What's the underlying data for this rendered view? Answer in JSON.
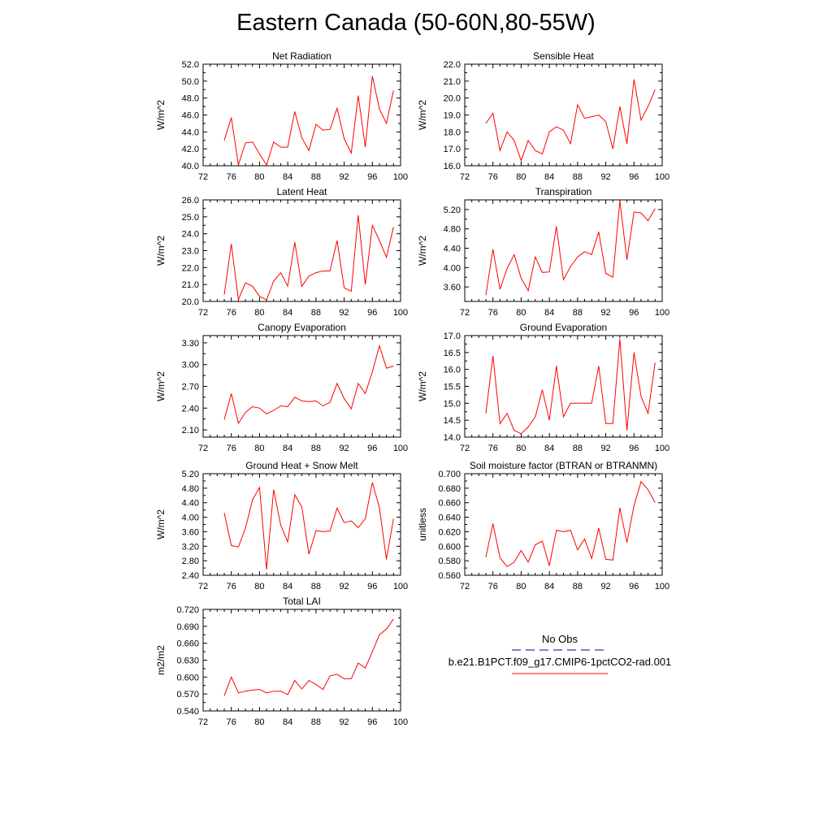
{
  "title": "Eastern Canada (50-60N,80-55W)",
  "colors": {
    "model": "#ff0000",
    "obs": "#00008b",
    "axis": "#000000"
  },
  "chart_data": [
    {
      "type": "line",
      "title": "Net Radiation",
      "ylabel": "W/m^2",
      "xlim": [
        72,
        100
      ],
      "ylim": [
        40.0,
        52.0
      ],
      "xticks": [
        "72",
        "76",
        "80",
        "84",
        "88",
        "92",
        "96",
        "100"
      ],
      "yticks": [
        "40.0",
        "42.0",
        "44.0",
        "46.0",
        "48.0",
        "50.0",
        "52.0"
      ],
      "x": [
        75,
        76,
        77,
        78,
        79,
        80,
        81,
        82,
        83,
        84,
        85,
        86,
        87,
        88,
        89,
        90,
        91,
        92,
        93,
        94,
        95,
        96,
        97,
        98,
        99
      ],
      "series": [
        {
          "values": [
            43.0,
            45.7,
            40.1,
            42.7,
            42.8,
            41.4,
            40.1,
            42.8,
            42.2,
            42.2,
            46.4,
            43.3,
            41.8,
            44.9,
            44.2,
            44.3,
            46.8,
            43.2,
            41.5,
            48.3,
            42.2,
            50.6,
            46.7,
            45.0,
            48.9
          ]
        }
      ]
    },
    {
      "type": "line",
      "title": "Sensible Heat",
      "ylabel": "W/m^2",
      "xlim": [
        72,
        100
      ],
      "ylim": [
        16.0,
        22.0
      ],
      "xticks": [
        "72",
        "76",
        "80",
        "84",
        "88",
        "92",
        "96",
        "100"
      ],
      "yticks": [
        "16.0",
        "17.0",
        "18.0",
        "19.0",
        "20.0",
        "21.0",
        "22.0"
      ],
      "x": [
        75,
        76,
        77,
        78,
        79,
        80,
        81,
        82,
        83,
        84,
        85,
        86,
        87,
        88,
        89,
        90,
        91,
        92,
        93,
        94,
        95,
        96,
        97,
        98,
        99
      ],
      "series": [
        {
          "values": [
            18.5,
            19.1,
            16.9,
            18.0,
            17.5,
            16.3,
            17.5,
            16.9,
            16.7,
            18.0,
            18.3,
            18.1,
            17.3,
            19.6,
            18.8,
            18.9,
            19.0,
            18.6,
            17.0,
            19.5,
            17.3,
            21.1,
            18.7,
            19.5,
            20.5
          ]
        }
      ]
    },
    {
      "type": "line",
      "title": "Latent Heat",
      "ylabel": "W/m^2",
      "xlim": [
        72,
        100
      ],
      "ylim": [
        20.0,
        26.0
      ],
      "xticks": [
        "72",
        "76",
        "80",
        "84",
        "88",
        "92",
        "96",
        "100"
      ],
      "yticks": [
        "20.0",
        "21.0",
        "22.0",
        "23.0",
        "24.0",
        "25.0",
        "26.0"
      ],
      "x": [
        75,
        76,
        77,
        78,
        79,
        80,
        81,
        82,
        83,
        84,
        85,
        86,
        87,
        88,
        89,
        90,
        91,
        92,
        93,
        94,
        95,
        96,
        97,
        98,
        99
      ],
      "series": [
        {
          "values": [
            20.4,
            23.4,
            20.1,
            21.1,
            20.9,
            20.3,
            20.1,
            21.2,
            21.7,
            20.9,
            23.5,
            20.9,
            21.5,
            21.7,
            21.8,
            21.8,
            23.6,
            20.8,
            20.6,
            25.1,
            21.0,
            24.5,
            23.6,
            22.6,
            24.4
          ]
        }
      ]
    },
    {
      "type": "line",
      "title": "Transpiration",
      "ylabel": "W/m^2",
      "xlim": [
        72,
        100
      ],
      "ylim": [
        3.3,
        5.4
      ],
      "xticks": [
        "72",
        "76",
        "80",
        "84",
        "88",
        "92",
        "96",
        "100"
      ],
      "yticks": [
        "3.60",
        "4.00",
        "4.40",
        "4.80",
        "5.20"
      ],
      "x": [
        75,
        76,
        77,
        78,
        79,
        80,
        81,
        82,
        83,
        84,
        85,
        86,
        87,
        88,
        89,
        90,
        91,
        92,
        93,
        94,
        95,
        96,
        97,
        98,
        99
      ],
      "series": [
        {
          "values": [
            3.43,
            4.38,
            3.55,
            3.98,
            4.27,
            3.78,
            3.52,
            4.22,
            3.9,
            3.91,
            4.85,
            3.75,
            4.02,
            4.22,
            4.33,
            4.27,
            4.74,
            3.88,
            3.8,
            5.38,
            4.16,
            5.15,
            5.13,
            4.97,
            5.22
          ]
        }
      ]
    },
    {
      "type": "line",
      "title": "Canopy Evaporation",
      "ylabel": "W/m^2",
      "xlim": [
        72,
        100
      ],
      "ylim": [
        2.0,
        3.4
      ],
      "xticks": [
        "72",
        "76",
        "80",
        "84",
        "88",
        "92",
        "96",
        "100"
      ],
      "yticks": [
        "2.10",
        "2.40",
        "2.70",
        "3.00",
        "3.30"
      ],
      "x": [
        75,
        76,
        77,
        78,
        79,
        80,
        81,
        82,
        83,
        84,
        85,
        86,
        87,
        88,
        89,
        90,
        91,
        92,
        93,
        94,
        95,
        96,
        97,
        98,
        99
      ],
      "series": [
        {
          "values": [
            2.24,
            2.6,
            2.19,
            2.34,
            2.42,
            2.4,
            2.32,
            2.37,
            2.43,
            2.42,
            2.55,
            2.5,
            2.49,
            2.5,
            2.43,
            2.48,
            2.74,
            2.53,
            2.39,
            2.74,
            2.6,
            2.9,
            3.26,
            2.95,
            2.98
          ]
        }
      ]
    },
    {
      "type": "line",
      "title": "Ground Evaporation",
      "ylabel": "W/m^2",
      "xlim": [
        72,
        100
      ],
      "ylim": [
        14.0,
        17.0
      ],
      "xticks": [
        "72",
        "76",
        "80",
        "84",
        "88",
        "92",
        "96",
        "100"
      ],
      "yticks": [
        "14.0",
        "14.5",
        "15.0",
        "15.5",
        "16.0",
        "16.5",
        "17.0"
      ],
      "x": [
        75,
        76,
        77,
        78,
        79,
        80,
        81,
        82,
        83,
        84,
        85,
        86,
        87,
        88,
        89,
        90,
        91,
        92,
        93,
        94,
        95,
        96,
        97,
        98,
        99
      ],
      "series": [
        {
          "values": [
            14.7,
            16.4,
            14.4,
            14.7,
            14.2,
            14.1,
            14.3,
            14.6,
            15.4,
            14.5,
            16.1,
            14.6,
            15.0,
            15.0,
            15.0,
            15.0,
            16.1,
            14.4,
            14.4,
            16.9,
            14.2,
            16.5,
            15.2,
            14.7,
            16.2
          ]
        }
      ]
    },
    {
      "type": "line",
      "title": "Ground Heat + Snow Melt",
      "ylabel": "W/m^2",
      "xlim": [
        72,
        100
      ],
      "ylim": [
        2.4,
        5.2
      ],
      "xticks": [
        "72",
        "76",
        "80",
        "84",
        "88",
        "92",
        "96",
        "100"
      ],
      "yticks": [
        "2.40",
        "2.80",
        "3.20",
        "3.60",
        "4.00",
        "4.40",
        "4.80",
        "5.20"
      ],
      "x": [
        75,
        76,
        77,
        78,
        79,
        80,
        81,
        82,
        83,
        84,
        85,
        86,
        87,
        88,
        89,
        90,
        91,
        92,
        93,
        94,
        95,
        96,
        97,
        98,
        99
      ],
      "series": [
        {
          "values": [
            4.12,
            3.22,
            3.18,
            3.7,
            4.48,
            4.82,
            2.56,
            4.76,
            3.78,
            3.32,
            4.62,
            4.28,
            2.98,
            3.63,
            3.6,
            3.62,
            4.25,
            3.85,
            3.9,
            3.71,
            3.96,
            4.96,
            4.26,
            2.84,
            3.96
          ]
        }
      ]
    },
    {
      "type": "line",
      "title": "Soil moisture factor (BTRAN or BTRANMN)",
      "ylabel": "unitless",
      "xlim": [
        72,
        100
      ],
      "ylim": [
        0.56,
        0.7
      ],
      "xticks": [
        "72",
        "76",
        "80",
        "84",
        "88",
        "92",
        "96",
        "100"
      ],
      "yticks": [
        "0.560",
        "0.580",
        "0.600",
        "0.620",
        "0.640",
        "0.660",
        "0.680",
        "0.700"
      ],
      "x": [
        75,
        76,
        77,
        78,
        79,
        80,
        81,
        82,
        83,
        84,
        85,
        86,
        87,
        88,
        89,
        90,
        91,
        92,
        93,
        94,
        95,
        96,
        97,
        98,
        99
      ],
      "series": [
        {
          "values": [
            0.585,
            0.631,
            0.584,
            0.572,
            0.578,
            0.594,
            0.578,
            0.602,
            0.607,
            0.573,
            0.622,
            0.62,
            0.622,
            0.595,
            0.61,
            0.583,
            0.625,
            0.582,
            0.581,
            0.653,
            0.605,
            0.656,
            0.689,
            0.678,
            0.66
          ]
        }
      ]
    },
    {
      "type": "line",
      "title": "Total LAI",
      "ylabel": "m2/m2",
      "xlim": [
        72,
        100
      ],
      "ylim": [
        0.54,
        0.72
      ],
      "xticks": [
        "72",
        "76",
        "80",
        "84",
        "88",
        "92",
        "96",
        "100"
      ],
      "yticks": [
        "0.540",
        "0.570",
        "0.600",
        "0.630",
        "0.660",
        "0.690",
        "0.720"
      ],
      "x": [
        75,
        76,
        77,
        78,
        79,
        80,
        81,
        82,
        83,
        84,
        85,
        86,
        87,
        88,
        89,
        90,
        91,
        92,
        93,
        94,
        95,
        96,
        97,
        98,
        99
      ],
      "series": [
        {
          "values": [
            0.567,
            0.6,
            0.572,
            0.575,
            0.577,
            0.578,
            0.572,
            0.575,
            0.575,
            0.569,
            0.594,
            0.579,
            0.594,
            0.587,
            0.578,
            0.602,
            0.605,
            0.597,
            0.597,
            0.625,
            0.616,
            0.645,
            0.675,
            0.685,
            0.703
          ]
        }
      ]
    }
  ],
  "legend": {
    "entries": [
      {
        "label": "No Obs",
        "style": "dashed",
        "color": "#00008b"
      },
      {
        "label": "b.e21.B1PCT.f09_g17.CMIP6-1pctCO2-rad.001",
        "style": "solid",
        "color": "#ff0000"
      }
    ]
  }
}
